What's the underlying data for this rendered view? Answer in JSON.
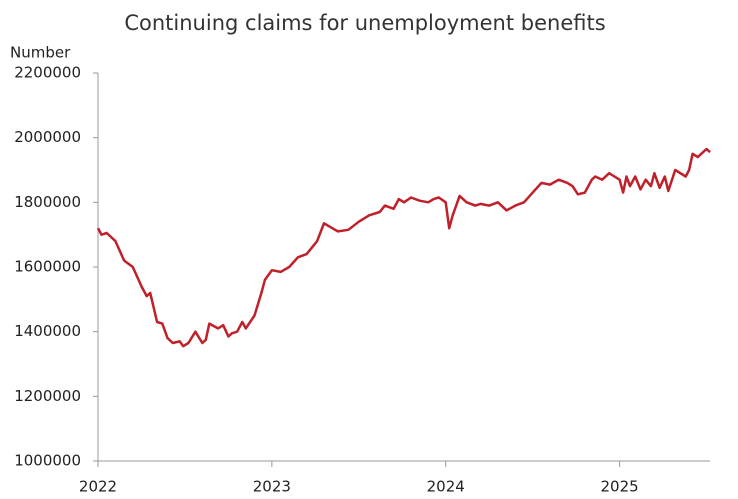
{
  "chart_data": {
    "type": "line",
    "title": "Continuing claims for unemployment benefits",
    "y_label": "Number",
    "x": [
      2022.0,
      2022.02,
      2022.05,
      2022.1,
      2022.15,
      2022.2,
      2022.25,
      2022.28,
      2022.3,
      2022.34,
      2022.37,
      2022.4,
      2022.43,
      2022.47,
      2022.49,
      2022.52,
      2022.56,
      2022.6,
      2022.62,
      2022.64,
      2022.69,
      2022.72,
      2022.75,
      2022.77,
      2022.8,
      2022.83,
      2022.85,
      2022.9,
      2022.94,
      2022.96,
      2023.0,
      2023.05,
      2023.1,
      2023.15,
      2023.2,
      2023.23,
      2023.26,
      2023.3,
      2023.38,
      2023.44,
      2023.5,
      2023.56,
      2023.62,
      2023.65,
      2023.7,
      2023.73,
      2023.76,
      2023.8,
      2023.85,
      2023.9,
      2023.93,
      2023.96,
      2024.0,
      2024.02,
      2024.04,
      2024.08,
      2024.12,
      2024.17,
      2024.2,
      2024.25,
      2024.3,
      2024.35,
      2024.4,
      2024.45,
      2024.5,
      2024.55,
      2024.6,
      2024.65,
      2024.7,
      2024.73,
      2024.76,
      2024.8,
      2024.84,
      2024.86,
      2024.9,
      2024.94,
      2024.97,
      2025.0,
      2025.02,
      2025.04,
      2025.06,
      2025.09,
      2025.12,
      2025.15,
      2025.18,
      2025.2,
      2025.23,
      2025.26,
      2025.28,
      2025.32,
      2025.38,
      2025.4,
      2025.42,
      2025.45,
      2025.5,
      2025.52
    ],
    "series": [
      {
        "name": "Continuing claims",
        "color": "#c0202a",
        "values": [
          1720000,
          1700000,
          1705000,
          1680000,
          1620000,
          1600000,
          1540000,
          1510000,
          1520000,
          1430000,
          1425000,
          1380000,
          1365000,
          1370000,
          1355000,
          1365000,
          1400000,
          1365000,
          1375000,
          1425000,
          1410000,
          1420000,
          1385000,
          1395000,
          1400000,
          1430000,
          1410000,
          1450000,
          1520000,
          1560000,
          1590000,
          1585000,
          1600000,
          1630000,
          1640000,
          1660000,
          1680000,
          1735000,
          1710000,
          1715000,
          1740000,
          1760000,
          1770000,
          1790000,
          1780000,
          1810000,
          1800000,
          1815000,
          1805000,
          1800000,
          1810000,
          1815000,
          1800000,
          1720000,
          1760000,
          1820000,
          1800000,
          1790000,
          1795000,
          1790000,
          1800000,
          1775000,
          1790000,
          1800000,
          1830000,
          1860000,
          1855000,
          1870000,
          1860000,
          1850000,
          1825000,
          1830000,
          1870000,
          1880000,
          1870000,
          1890000,
          1880000,
          1870000,
          1830000,
          1880000,
          1850000,
          1880000,
          1840000,
          1870000,
          1850000,
          1890000,
          1845000,
          1880000,
          1835000,
          1900000,
          1880000,
          1900000,
          1950000,
          1940000,
          1965000,
          1955000
        ]
      }
    ],
    "xlim": [
      2022,
      2025.52
    ],
    "xticks": [
      2022,
      2023,
      2024,
      2025
    ],
    "ylim": [
      1000000,
      2200000
    ],
    "yticks": [
      1000000,
      1200000,
      1400000,
      1600000,
      1800000,
      2000000,
      2200000
    ],
    "grid": false
  }
}
